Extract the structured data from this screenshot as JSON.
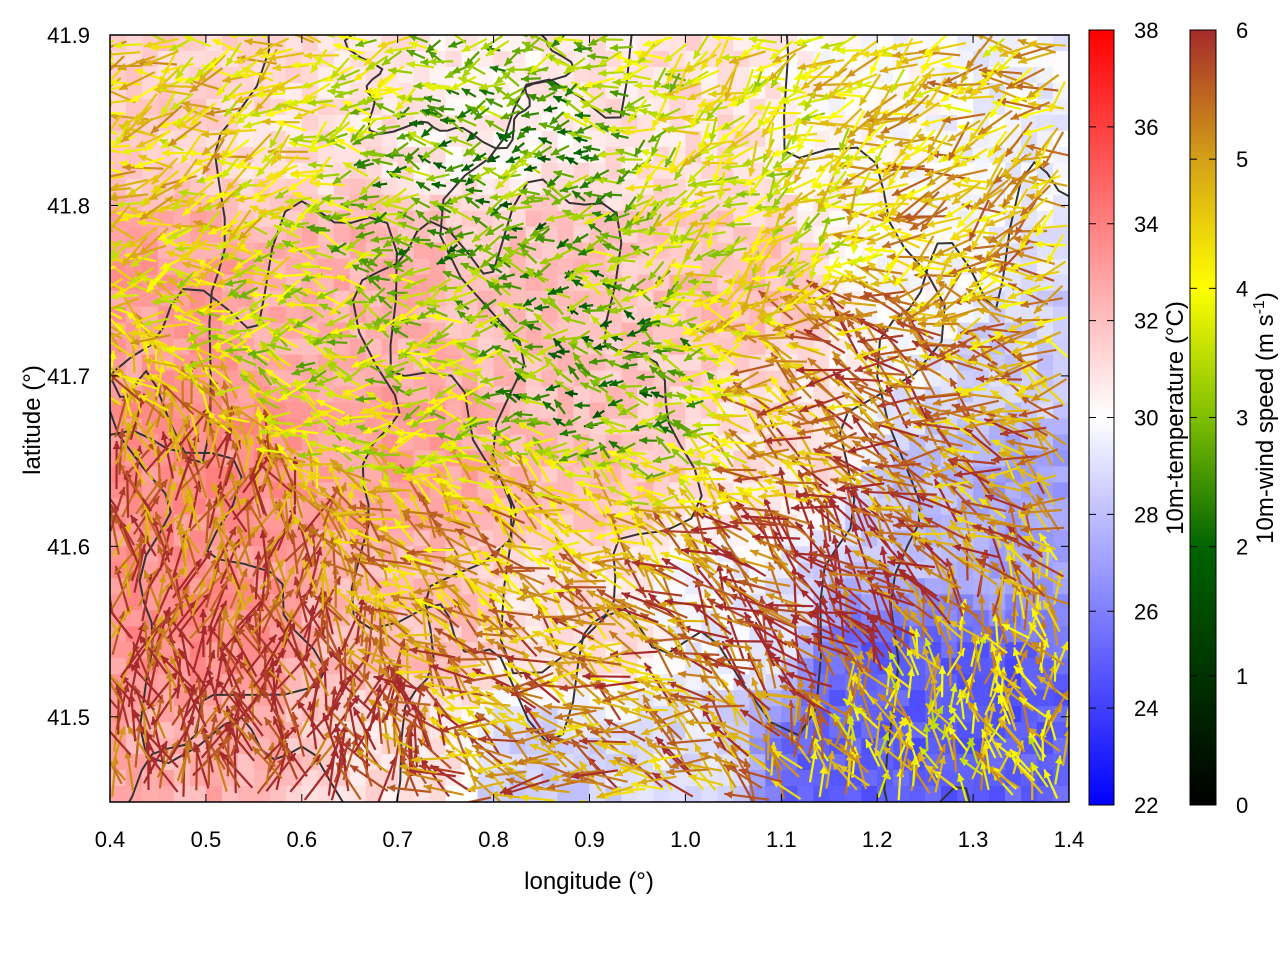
{
  "chart_data": {
    "type": "heatmap",
    "xlabel": "longitude (°)",
    "ylabel": "latitude (°)",
    "xlim": [
      0.4,
      1.4
    ],
    "ylim": [
      41.45,
      41.9
    ],
    "x_ticks": [
      "0.4",
      "0.5",
      "0.6",
      "0.7",
      "0.8",
      "0.9",
      "1.0",
      "1.1",
      "1.2",
      "1.3",
      "1.4"
    ],
    "x_tick_values": [
      0.4,
      0.5,
      0.6,
      0.7,
      0.8,
      0.9,
      1.0,
      1.1,
      1.2,
      1.3,
      1.4
    ],
    "y_ticks": [
      "41.5",
      "41.6",
      "41.7",
      "41.8",
      "41.9"
    ],
    "y_tick_values": [
      41.5,
      41.6,
      41.7,
      41.8,
      41.9
    ],
    "temperature_colorbar": {
      "label": "10m-temperature (°C)",
      "range": [
        22,
        38
      ],
      "ticks": [
        "22",
        "24",
        "26",
        "28",
        "30",
        "32",
        "34",
        "36",
        "38"
      ],
      "tick_values": [
        22,
        24,
        26,
        28,
        30,
        32,
        34,
        36,
        38
      ],
      "colors": [
        "#0000ff",
        "#ffffff",
        "#ff0000"
      ]
    },
    "wind_colorbar": {
      "label_main": "10m-wind speed (m s",
      "label_sup": "-1",
      "label_end": ")",
      "range": [
        0,
        6
      ],
      "ticks": [
        "0",
        "1",
        "2",
        "3",
        "4",
        "5",
        "6"
      ],
      "tick_values": [
        0,
        1,
        2,
        3,
        4,
        5,
        6
      ],
      "colors": [
        "#000000",
        "#006400",
        "#7fbf00",
        "#ffff00",
        "#d4a017",
        "#a52a2a"
      ]
    },
    "temperature_field_samples": [
      {
        "lon": 0.45,
        "lat": 41.85,
        "t": 31.5
      },
      {
        "lon": 0.6,
        "lat": 41.85,
        "t": 31
      },
      {
        "lon": 0.8,
        "lat": 41.85,
        "t": 30.5
      },
      {
        "lon": 1.0,
        "lat": 41.85,
        "t": 31
      },
      {
        "lon": 1.2,
        "lat": 41.85,
        "t": 30
      },
      {
        "lon": 1.35,
        "lat": 41.85,
        "t": 29.5
      },
      {
        "lon": 0.45,
        "lat": 41.75,
        "t": 33
      },
      {
        "lon": 0.65,
        "lat": 41.75,
        "t": 32.5
      },
      {
        "lon": 0.85,
        "lat": 41.75,
        "t": 32
      },
      {
        "lon": 1.05,
        "lat": 41.75,
        "t": 32
      },
      {
        "lon": 1.25,
        "lat": 41.75,
        "t": 30
      },
      {
        "lon": 1.35,
        "lat": 41.72,
        "t": 28.5
      },
      {
        "lon": 0.5,
        "lat": 41.65,
        "t": 33.5
      },
      {
        "lon": 0.7,
        "lat": 41.65,
        "t": 33
      },
      {
        "lon": 0.9,
        "lat": 41.65,
        "t": 32
      },
      {
        "lon": 1.1,
        "lat": 41.65,
        "t": 31
      },
      {
        "lon": 1.25,
        "lat": 41.62,
        "t": 28
      },
      {
        "lon": 1.35,
        "lat": 41.62,
        "t": 27
      },
      {
        "lon": 0.5,
        "lat": 41.55,
        "t": 33.5
      },
      {
        "lon": 0.7,
        "lat": 41.55,
        "t": 32
      },
      {
        "lon": 0.9,
        "lat": 41.55,
        "t": 31
      },
      {
        "lon": 1.05,
        "lat": 41.55,
        "t": 29.5
      },
      {
        "lon": 1.2,
        "lat": 41.52,
        "t": 25
      },
      {
        "lon": 1.3,
        "lat": 41.5,
        "t": 24.5
      },
      {
        "lon": 0.5,
        "lat": 41.48,
        "t": 32.5
      },
      {
        "lon": 0.7,
        "lat": 41.48,
        "t": 31
      },
      {
        "lon": 0.85,
        "lat": 41.47,
        "t": 28.5
      },
      {
        "lon": 1.0,
        "lat": 41.47,
        "t": 29
      },
      {
        "lon": 1.15,
        "lat": 41.47,
        "t": 25
      },
      {
        "lon": 1.35,
        "lat": 41.47,
        "t": 25
      }
    ],
    "wind_field_regions": [
      {
        "lon": 0.5,
        "lat": 41.85,
        "speed": 4,
        "dir_deg": 200
      },
      {
        "lon": 0.8,
        "lat": 41.8,
        "speed": 2,
        "dir_deg": 180
      },
      {
        "lon": 1.1,
        "lat": 41.8,
        "speed": 3.5,
        "dir_deg": 220
      },
      {
        "lon": 1.3,
        "lat": 41.8,
        "speed": 4.5,
        "dir_deg": 200
      },
      {
        "lon": 0.7,
        "lat": 41.7,
        "speed": 3,
        "dir_deg": 180
      },
      {
        "lon": 0.9,
        "lat": 41.7,
        "speed": 2,
        "dir_deg": 170
      },
      {
        "lon": 1.2,
        "lat": 41.7,
        "speed": 5,
        "dir_deg": 160
      },
      {
        "lon": 0.5,
        "lat": 41.6,
        "speed": 5.5,
        "dir_deg": 80
      },
      {
        "lon": 0.8,
        "lat": 41.6,
        "speed": 4.5,
        "dir_deg": 150
      },
      {
        "lon": 1.15,
        "lat": 41.55,
        "speed": 6,
        "dir_deg": 135
      },
      {
        "lon": 0.55,
        "lat": 41.5,
        "speed": 6,
        "dir_deg": 90
      },
      {
        "lon": 0.9,
        "lat": 41.5,
        "speed": 5,
        "dir_deg": 160
      },
      {
        "lon": 1.25,
        "lat": 41.5,
        "speed": 4,
        "dir_deg": 100
      }
    ],
    "grid": false,
    "legend": "colorbars-right"
  }
}
